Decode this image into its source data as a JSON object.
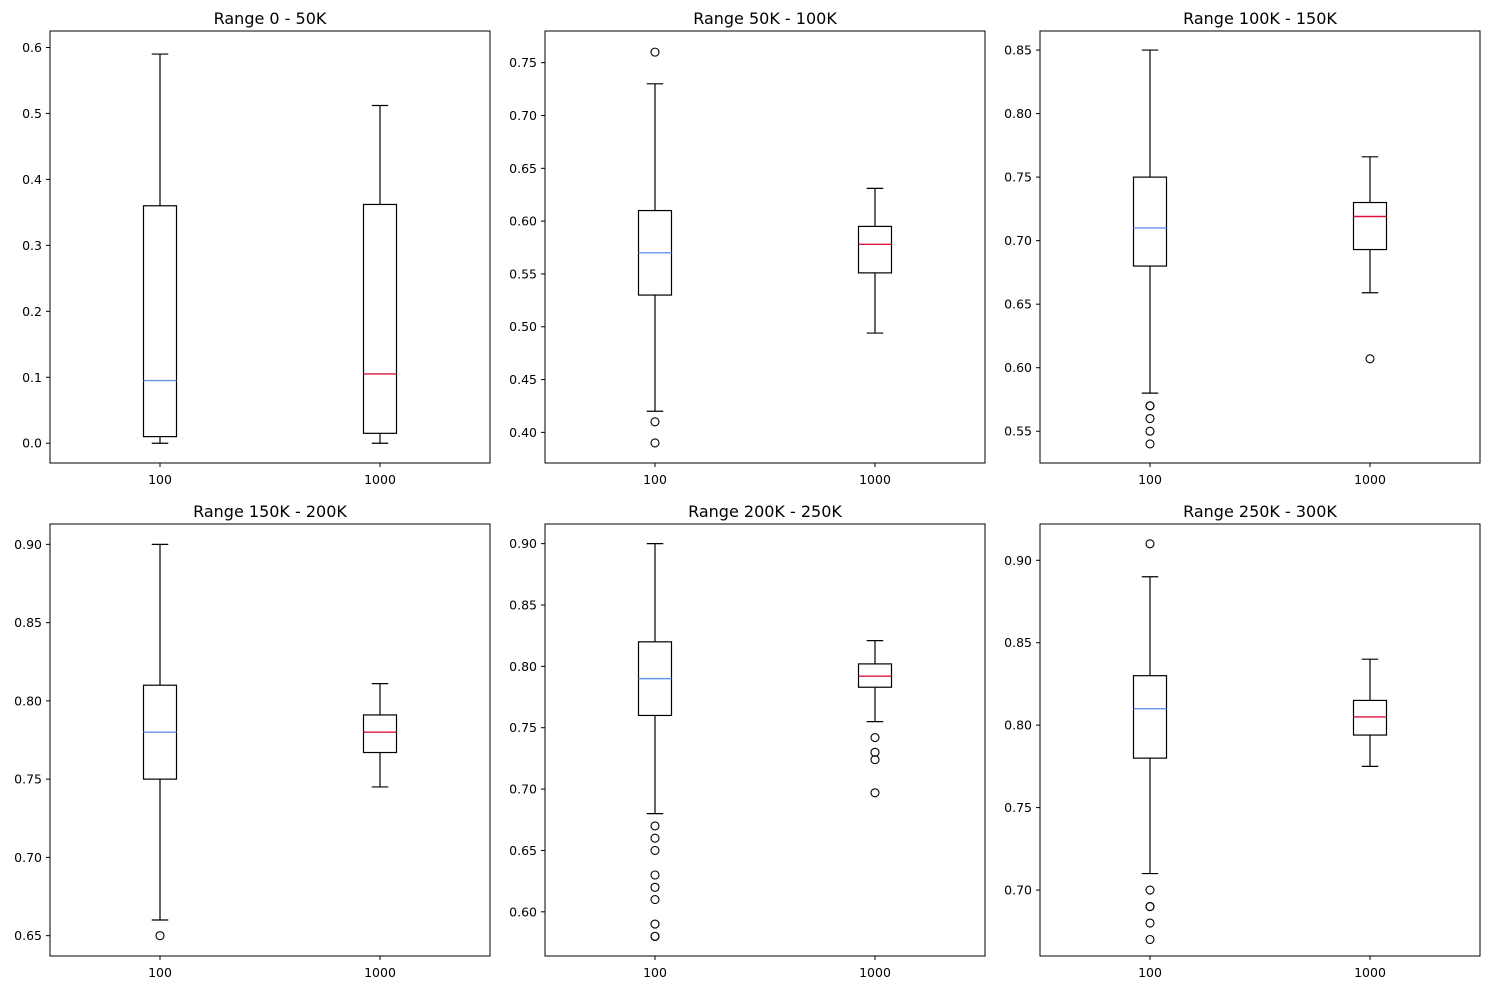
{
  "colors": {
    "median_100": "#6495ed",
    "median_1000": "#dc143c",
    "box_stroke": "#000000"
  },
  "chart_data": [
    {
      "type": "box",
      "title": "Range 0 - 50K",
      "categories": [
        "100",
        "1000"
      ],
      "ylim": [
        -0.03,
        0.625
      ],
      "yticks": [
        0.0,
        0.1,
        0.2,
        0.3,
        0.4,
        0.5,
        0.6
      ],
      "ytick_labels": [
        "0.0",
        "0.1",
        "0.2",
        "0.3",
        "0.4",
        "0.5",
        "0.6"
      ],
      "boxes": [
        {
          "whisker_low": 0.0,
          "q1": 0.01,
          "median": 0.095,
          "q3": 0.36,
          "whisker_high": 0.59,
          "outliers": []
        },
        {
          "whisker_low": 0.0,
          "q1": 0.015,
          "median": 0.105,
          "q3": 0.362,
          "whisker_high": 0.512,
          "outliers": []
        }
      ]
    },
    {
      "type": "box",
      "title": "Range 50K - 100K",
      "categories": [
        "100",
        "1000"
      ],
      "ylim": [
        0.371,
        0.78
      ],
      "yticks": [
        0.4,
        0.45,
        0.5,
        0.55,
        0.6,
        0.65,
        0.7,
        0.75
      ],
      "ytick_labels": [
        "0.40",
        "0.45",
        "0.50",
        "0.55",
        "0.60",
        "0.65",
        "0.70",
        "0.75"
      ],
      "boxes": [
        {
          "whisker_low": 0.42,
          "q1": 0.53,
          "median": 0.57,
          "q3": 0.61,
          "whisker_high": 0.73,
          "outliers": [
            0.39,
            0.41,
            0.76
          ]
        },
        {
          "whisker_low": 0.494,
          "q1": 0.551,
          "median": 0.578,
          "q3": 0.595,
          "whisker_high": 0.631,
          "outliers": []
        }
      ]
    },
    {
      "type": "box",
      "title": "Range 100K - 150K",
      "categories": [
        "100",
        "1000"
      ],
      "ylim": [
        0.525,
        0.865
      ],
      "yticks": [
        0.55,
        0.6,
        0.65,
        0.7,
        0.75,
        0.8,
        0.85
      ],
      "ytick_labels": [
        "0.55",
        "0.60",
        "0.65",
        "0.70",
        "0.75",
        "0.80",
        "0.85"
      ],
      "boxes": [
        {
          "whisker_low": 0.58,
          "q1": 0.68,
          "median": 0.71,
          "q3": 0.75,
          "whisker_high": 0.85,
          "outliers": [
            0.54,
            0.55,
            0.56,
            0.57,
            0.57
          ]
        },
        {
          "whisker_low": 0.659,
          "q1": 0.693,
          "median": 0.719,
          "q3": 0.73,
          "whisker_high": 0.766,
          "outliers": [
            0.607
          ]
        }
      ]
    },
    {
      "type": "box",
      "title": "Range 150K - 200K",
      "categories": [
        "100",
        "1000"
      ],
      "ylim": [
        0.637,
        0.913
      ],
      "yticks": [
        0.65,
        0.7,
        0.75,
        0.8,
        0.85,
        0.9
      ],
      "ytick_labels": [
        "0.65",
        "0.70",
        "0.75",
        "0.80",
        "0.85",
        "0.90"
      ],
      "boxes": [
        {
          "whisker_low": 0.66,
          "q1": 0.75,
          "median": 0.78,
          "q3": 0.81,
          "whisker_high": 0.9,
          "outliers": [
            0.65
          ]
        },
        {
          "whisker_low": 0.745,
          "q1": 0.767,
          "median": 0.78,
          "q3": 0.791,
          "whisker_high": 0.811,
          "outliers": []
        }
      ]
    },
    {
      "type": "box",
      "title": "Range 200K - 250K",
      "categories": [
        "100",
        "1000"
      ],
      "ylim": [
        0.564,
        0.916
      ],
      "yticks": [
        0.6,
        0.65,
        0.7,
        0.75,
        0.8,
        0.85,
        0.9
      ],
      "ytick_labels": [
        "0.60",
        "0.65",
        "0.70",
        "0.75",
        "0.80",
        "0.85",
        "0.90"
      ],
      "boxes": [
        {
          "whisker_low": 0.68,
          "q1": 0.76,
          "median": 0.79,
          "q3": 0.82,
          "whisker_high": 0.9,
          "outliers": [
            0.58,
            0.58,
            0.59,
            0.61,
            0.62,
            0.63,
            0.65,
            0.66,
            0.67
          ]
        },
        {
          "whisker_low": 0.755,
          "q1": 0.783,
          "median": 0.792,
          "q3": 0.802,
          "whisker_high": 0.821,
          "outliers": [
            0.697,
            0.724,
            0.73,
            0.742
          ]
        }
      ]
    },
    {
      "type": "box",
      "title": "Range 250K - 300K",
      "categories": [
        "100",
        "1000"
      ],
      "ylim": [
        0.66,
        0.922
      ],
      "yticks": [
        0.7,
        0.75,
        0.8,
        0.85,
        0.9
      ],
      "ytick_labels": [
        "0.70",
        "0.75",
        "0.80",
        "0.85",
        "0.90"
      ],
      "boxes": [
        {
          "whisker_low": 0.71,
          "q1": 0.78,
          "median": 0.81,
          "q3": 0.83,
          "whisker_high": 0.89,
          "outliers": [
            0.67,
            0.68,
            0.69,
            0.69,
            0.7,
            0.91
          ]
        },
        {
          "whisker_low": 0.775,
          "q1": 0.794,
          "median": 0.805,
          "q3": 0.815,
          "whisker_high": 0.84,
          "outliers": []
        }
      ]
    }
  ]
}
